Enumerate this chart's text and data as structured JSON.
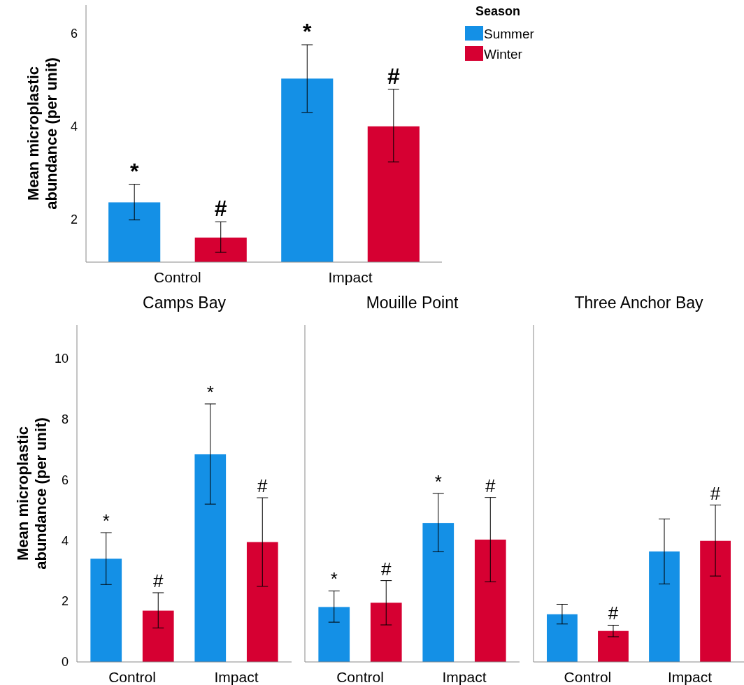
{
  "chart_data": [
    {
      "type": "bar",
      "ylabel": "Mean microplastic abundance (per unit)",
      "categories": [
        "Control",
        "Impact"
      ],
      "legend_title": "Season",
      "legend": "top right",
      "series": [
        {
          "name": "Summer",
          "color": "#1490e6",
          "values": [
            2.36,
            5.03
          ],
          "errors": [
            [
              1.98,
              2.75
            ],
            [
              4.3,
              5.76
            ]
          ],
          "value_labels": [
            "*",
            "*"
          ]
        },
        {
          "name": "Winter",
          "color": "#d60032",
          "values": [
            1.6,
            4.0
          ],
          "errors": [
            [
              1.28,
              1.94
            ],
            [
              3.23,
              4.8
            ]
          ],
          "value_labels": [
            "#",
            "#"
          ]
        }
      ],
      "ylim": [
        1.07,
        6.62
      ],
      "yticks": [
        2,
        4,
        6
      ]
    },
    {
      "type": "bar",
      "title": "Camps Bay",
      "ylabel": "Mean microplastic abundance (per unit)",
      "categories": [
        "Control",
        "Impact"
      ],
      "series": [
        {
          "color": "#1490e6",
          "values": [
            3.4,
            6.84
          ],
          "errors": [
            [
              2.55,
              4.26
            ],
            [
              5.2,
              8.5
            ]
          ],
          "value_labels": [
            "*",
            "*"
          ]
        },
        {
          "color": "#d60032",
          "values": [
            1.69,
            3.95
          ],
          "errors": [
            [
              1.12,
              2.28
            ],
            [
              2.49,
              5.41
            ]
          ],
          "value_labels": [
            "#",
            "#"
          ]
        }
      ],
      "ylim": [
        0,
        11.1
      ],
      "yticks": [
        0,
        2,
        4,
        6,
        8,
        10
      ]
    },
    {
      "type": "bar",
      "title": "Mouille Point",
      "categories": [
        "Control",
        "Impact"
      ],
      "tick_labels": "x",
      "series": [
        {
          "color": "#1490e6",
          "values": [
            1.81,
            4.58
          ],
          "errors": [
            [
              1.31,
              2.34
            ],
            [
              3.63,
              5.55
            ]
          ],
          "value_labels": [
            "*",
            "*"
          ]
        },
        {
          "color": "#d60032",
          "values": [
            1.95,
            4.03
          ],
          "errors": [
            [
              1.22,
              2.68
            ],
            [
              2.64,
              5.42
            ]
          ],
          "value_labels": [
            "#",
            "#"
          ]
        }
      ],
      "ylim": [
        0,
        11.1
      ],
      "yticks": [
        0,
        2,
        4,
        6,
        8,
        10
      ]
    },
    {
      "type": "bar",
      "title": "Three Anchor Bay",
      "categories": [
        "Control",
        "Impact"
      ],
      "tick_labels": "x",
      "series": [
        {
          "color": "#1490e6",
          "values": [
            1.57,
            3.64
          ],
          "errors": [
            [
              1.25,
              1.9
            ],
            [
              2.57,
              4.71
            ]
          ]
        },
        {
          "color": "#d60032",
          "values": [
            1.02,
            3.99
          ],
          "errors": [
            [
              0.83,
              1.21
            ],
            [
              2.83,
              5.17
            ]
          ],
          "value_labels": [
            "#",
            "#"
          ]
        }
      ],
      "ylim": [
        0,
        11.1
      ],
      "yticks": [
        0,
        2,
        4,
        6,
        8,
        10
      ]
    }
  ]
}
